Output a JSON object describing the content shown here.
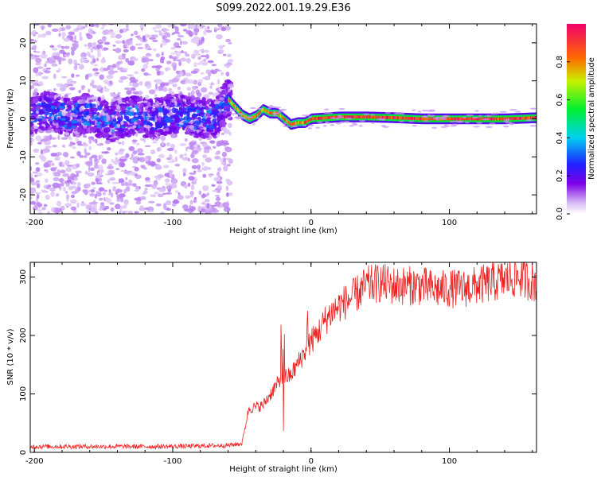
{
  "title": "S099.2022.001.19.29.E36",
  "colors": {
    "snr_line": "#ee2222",
    "axis": "#000000"
  },
  "chart_data": [
    {
      "type": "heatmap",
      "title": "",
      "xlabel": "Height of straight line (km)",
      "ylabel": "Frequency (Hz)",
      "xlim": [
        -203,
        163
      ],
      "ylim": [
        -25,
        25
      ],
      "xticks": [
        -200,
        -100,
        0,
        100
      ],
      "yticks": [
        -20,
        -10,
        0,
        10,
        20
      ],
      "colorbar": {
        "label": "Normalized spectral amplitude",
        "range": [
          0.0,
          1.0
        ],
        "ticks": [
          0.0,
          0.2,
          0.4,
          0.6,
          0.8
        ],
        "colormap": "rainbow"
      },
      "series": [
        {
          "description_points": [
            [
              -203,
              1.5
            ],
            [
              -190,
              2.0
            ],
            [
              -175,
              0.5
            ],
            [
              -160,
              1.5
            ],
            [
              -145,
              -1.0
            ],
            [
              -130,
              1.0
            ],
            [
              -115,
              0.0
            ],
            [
              -100,
              1.5
            ],
            [
              -85,
              0.5
            ],
            [
              -70,
              0.0
            ],
            [
              -60,
              5.0
            ],
            [
              -55,
              3.0
            ],
            [
              -50,
              1.0
            ],
            [
              -45,
              0.0
            ],
            [
              -40,
              0.8
            ],
            [
              -35,
              2.5
            ],
            [
              -30,
              1.5
            ],
            [
              -25,
              1.5
            ],
            [
              -20,
              0.0
            ],
            [
              -15,
              -1.5
            ],
            [
              -10,
              -1.0
            ],
            [
              -5,
              -1.0
            ],
            [
              0,
              0.0
            ],
            [
              20,
              0.5
            ],
            [
              40,
              0.5
            ],
            [
              60,
              0.3
            ],
            [
              80,
              0.0
            ],
            [
              100,
              0.0
            ],
            [
              120,
              0.0
            ],
            [
              140,
              0.0
            ],
            [
              163,
              0.3
            ]
          ]
        }
      ]
    },
    {
      "type": "line",
      "title": "",
      "xlabel": "Height of straight line (km)",
      "ylabel": "SNR (10 * v/v)",
      "xlim": [
        -203,
        163
      ],
      "ylim": [
        0,
        325
      ],
      "xticks": [
        -200,
        -100,
        0,
        100
      ],
      "yticks": [
        0,
        100,
        200,
        300
      ],
      "series": [
        {
          "envelope": [
            [
              -203,
              10
            ],
            [
              -150,
              10
            ],
            [
              -100,
              10
            ],
            [
              -60,
              12
            ],
            [
              -50,
              15
            ],
            [
              -45,
              75
            ],
            [
              -35,
              80
            ],
            [
              -25,
              115
            ],
            [
              -18,
              130
            ],
            [
              -15,
              130
            ],
            [
              -10,
              150
            ],
            [
              -5,
              170
            ],
            [
              0,
              190
            ],
            [
              5,
              205
            ],
            [
              10,
              225
            ],
            [
              15,
              240
            ],
            [
              20,
              250
            ],
            [
              30,
              265
            ],
            [
              40,
              285
            ],
            [
              50,
              290
            ],
            [
              60,
              285
            ],
            [
              70,
              285
            ],
            [
              80,
              285
            ],
            [
              90,
              278
            ],
            [
              100,
              280
            ],
            [
              110,
              280
            ],
            [
              120,
              285
            ],
            [
              130,
              290
            ],
            [
              140,
              295
            ],
            [
              150,
              300
            ],
            [
              163,
              290
            ]
          ]
        }
      ]
    }
  ]
}
